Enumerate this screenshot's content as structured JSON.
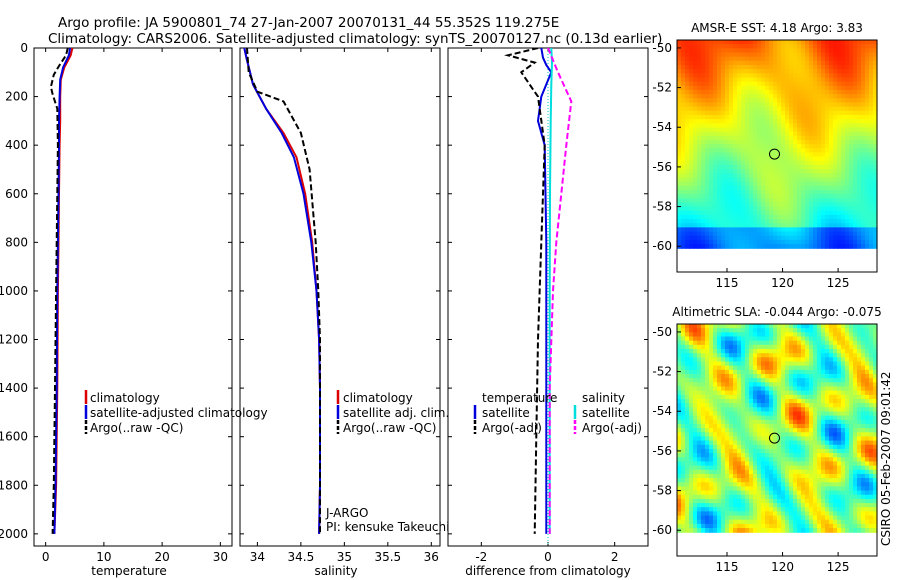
{
  "title": {
    "line1": "Argo profile: JA 5900801_74 27-Jan-2007 20070131_44 55.352S 119.275E",
    "line2": "Climatology: CARS2006. Satellite-adjusted climatology: synTS_20070127.nc (0.13d earlier)"
  },
  "colors": {
    "climatology": "#dd0000",
    "satellite": "#0000dd",
    "argo": "#000000",
    "sat_salinity": "#00dddd",
    "argo_salinity": "#ff00ff"
  },
  "credit": "CSIRO 05-Feb-2007 09:01:42",
  "chart_data": [
    {
      "type": "line",
      "id": "temperature",
      "xlabel": "temperature",
      "ylabel": "",
      "xlim": [
        -2,
        32
      ],
      "ylim": [
        0,
        2050
      ],
      "xticks": [
        0,
        10,
        20,
        30
      ],
      "yticks": [
        0,
        200,
        400,
        600,
        800,
        1000,
        1200,
        1400,
        1600,
        1800,
        2000
      ],
      "legend": [
        "climatology",
        "satellite-adjusted climatology",
        "Argo(..raw -QC)"
      ],
      "series": [
        {
          "name": "climatology",
          "color": "#dd0000",
          "style": "solid",
          "x": [
            4.6,
            4.3,
            3.2,
            2.6,
            2.5,
            2.5,
            2.4,
            2.3,
            2.2,
            2.1,
            2.0,
            1.8,
            1.5
          ],
          "y": [
            0,
            30,
            80,
            130,
            200,
            300,
            400,
            600,
            800,
            1000,
            1400,
            1800,
            2000
          ]
        },
        {
          "name": "satellite-adjusted climatology",
          "color": "#0000dd",
          "style": "solid",
          "x": [
            4.2,
            4.0,
            3.0,
            2.5,
            2.4,
            2.3,
            2.3,
            2.2,
            2.1,
            2.0,
            1.9,
            1.7,
            1.5
          ],
          "y": [
            0,
            30,
            80,
            130,
            200,
            300,
            400,
            600,
            800,
            1000,
            1400,
            1800,
            2000
          ]
        },
        {
          "name": "Argo(..raw -QC)",
          "color": "#000000",
          "style": "dashed",
          "x": [
            3.8,
            3.5,
            2.4,
            1.4,
            0.9,
            1.2,
            2.0,
            2.1,
            2.0,
            1.8,
            1.6,
            1.4,
            1.2
          ],
          "y": [
            0,
            30,
            70,
            110,
            160,
            190,
            250,
            400,
            600,
            1000,
            1400,
            1800,
            2000
          ]
        }
      ]
    },
    {
      "type": "line",
      "id": "salinity",
      "xlabel": "salinity",
      "ylabel": "",
      "xlim": [
        33.8,
        36.1
      ],
      "ylim": [
        0,
        2050
      ],
      "xticks": [
        34,
        34.5,
        35,
        35.5,
        36
      ],
      "yticks": [
        0,
        200,
        400,
        600,
        800,
        1000,
        1200,
        1400,
        1600,
        1800,
        2000
      ],
      "legend": [
        "climatology",
        "satellite adj. clim.",
        "Argo(..raw -QC)"
      ],
      "annotations": [
        "J-ARGO",
        "PI: kensuke Takeuchi"
      ],
      "series": [
        {
          "name": "climatology",
          "color": "#dd0000",
          "style": "solid",
          "x": [
            33.85,
            33.88,
            33.95,
            34.1,
            34.3,
            34.45,
            34.55,
            34.63,
            34.68,
            34.71,
            34.72,
            34.72,
            34.71
          ],
          "y": [
            0,
            50,
            150,
            250,
            350,
            450,
            600,
            800,
            1000,
            1200,
            1400,
            1800,
            2000
          ]
        },
        {
          "name": "satellite adj. clim.",
          "color": "#0000dd",
          "style": "solid",
          "x": [
            33.85,
            33.88,
            33.95,
            34.1,
            34.28,
            34.42,
            34.53,
            34.62,
            34.68,
            34.71,
            34.72,
            34.72,
            34.71
          ],
          "y": [
            0,
            50,
            150,
            250,
            350,
            450,
            600,
            800,
            1000,
            1200,
            1400,
            1800,
            2000
          ]
        },
        {
          "name": "Argo(..raw -QC)",
          "color": "#000000",
          "style": "dashed",
          "x": [
            33.88,
            33.9,
            34.0,
            34.3,
            34.5,
            34.6,
            34.67,
            34.7,
            34.72,
            34.72,
            34.72,
            34.72
          ],
          "y": [
            0,
            100,
            180,
            220,
            350,
            500,
            800,
            1000,
            1200,
            1400,
            1800,
            2000
          ]
        }
      ]
    },
    {
      "type": "line",
      "id": "difference",
      "xlabel": "difference from climatology",
      "ylabel": "",
      "xlim": [
        -3,
        3
      ],
      "ylim": [
        0,
        2050
      ],
      "xticks": [
        -2,
        0,
        2
      ],
      "yticks": [
        0,
        200,
        400,
        600,
        800,
        1000,
        1200,
        1400,
        1600,
        1800,
        2000
      ],
      "legend_left": [
        "temperature",
        "satellite",
        "Argo(-adj)"
      ],
      "legend_right": [
        "salinity",
        "satellite",
        "Argo(-adj)"
      ],
      "series": [
        {
          "name": "temperature satellite",
          "color": "#0000dd",
          "style": "solid",
          "x": [
            -0.2,
            -0.15,
            -0.05,
            0.1,
            -0.05,
            -0.2,
            -0.3,
            -0.1,
            -0.05,
            -0.05,
            -0.05,
            -0.05
          ],
          "y": [
            0,
            40,
            70,
            100,
            150,
            200,
            300,
            400,
            800,
            1200,
            1600,
            2000
          ]
        },
        {
          "name": "temperature Argo(-adj)",
          "color": "#000000",
          "style": "dashed",
          "x": [
            -0.3,
            -1.2,
            -0.4,
            -0.8,
            -0.5,
            -0.3,
            -0.1,
            -0.2,
            -0.3,
            -0.35,
            -0.4
          ],
          "y": [
            0,
            30,
            60,
            100,
            160,
            200,
            400,
            800,
            1200,
            1600,
            2000
          ]
        },
        {
          "name": "salinity satellite",
          "color": "#00dddd",
          "style": "solid",
          "x": [
            0.1,
            0.12,
            0.1,
            0.08,
            0.06,
            0.05,
            0.05,
            0.05
          ],
          "y": [
            0,
            60,
            150,
            300,
            600,
            1000,
            1500,
            2000
          ]
        },
        {
          "name": "salinity Argo(-adj)",
          "color": "#ff00ff",
          "style": "dashed",
          "x": [
            0.0,
            0.3,
            0.7,
            0.55,
            0.4,
            0.25,
            0.15,
            0.05,
            0.05
          ],
          "y": [
            0,
            100,
            220,
            400,
            600,
            800,
            1000,
            1400,
            2000
          ]
        }
      ]
    },
    {
      "type": "heatmap",
      "id": "sst_map",
      "title": "AMSR-E SST: 4.18 Argo: 3.83",
      "xlim": [
        110.5,
        128.5
      ],
      "ylim": [
        -61.3,
        -49.6
      ],
      "data_ylim_bottom": -60.1,
      "xticks": [
        115,
        120,
        125
      ],
      "yticks": [
        -50,
        -52,
        -54,
        -56,
        -58,
        -60
      ],
      "marker": {
        "lon": 119.275,
        "lat": -55.352
      }
    },
    {
      "type": "heatmap",
      "id": "sla_map",
      "title": "Altimetric SLA: -0.044 Argo: -0.075",
      "xlim": [
        110.5,
        128.5
      ],
      "ylim": [
        -61.3,
        -49.6
      ],
      "data_ylim_bottom": -60.1,
      "xticks": [
        115,
        120,
        125
      ],
      "yticks": [
        -50,
        -52,
        -54,
        -56,
        -58,
        -60
      ],
      "marker": {
        "lon": 119.275,
        "lat": -55.352
      }
    }
  ]
}
